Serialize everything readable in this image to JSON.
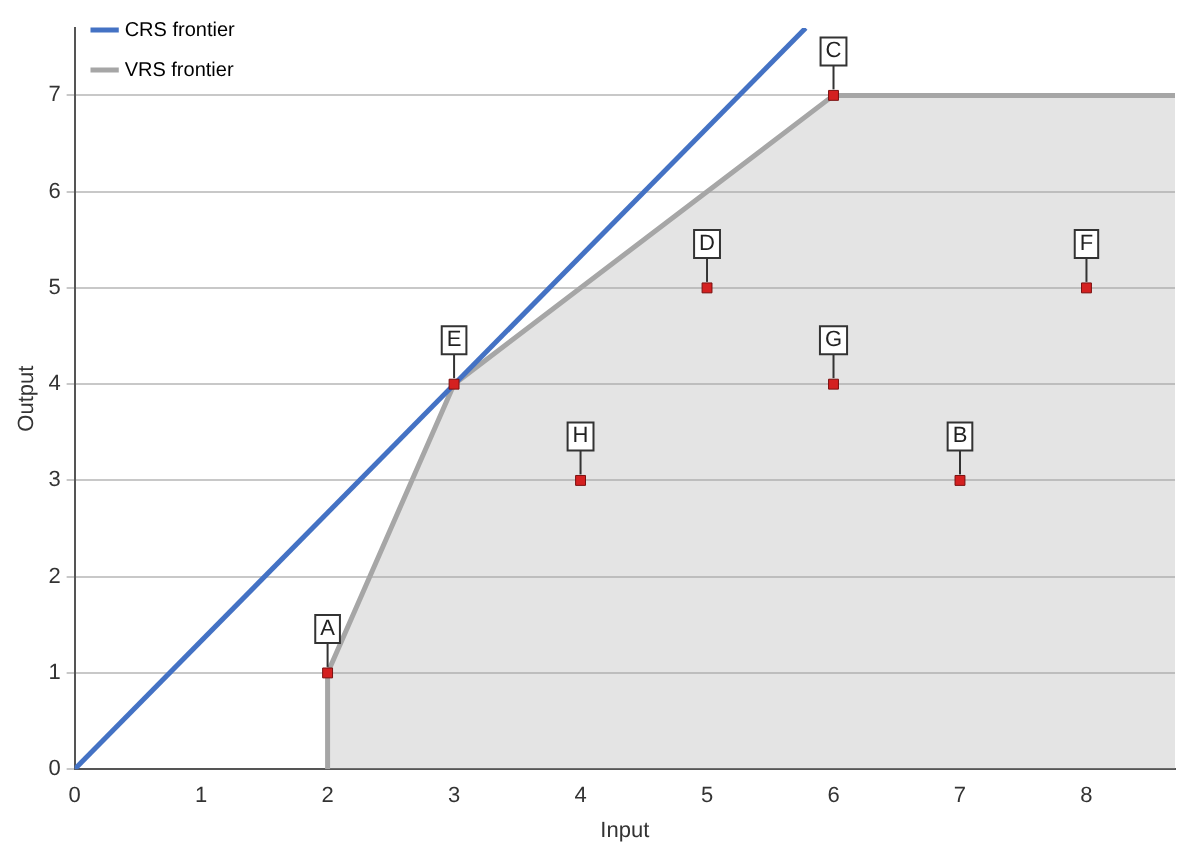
{
  "chart_data": {
    "type": "scatter",
    "xlabel": "Input",
    "ylabel": "Output",
    "xlim": [
      0,
      8.7
    ],
    "ylim": [
      0,
      7.7
    ],
    "xticks": [
      0,
      1,
      2,
      3,
      4,
      5,
      6,
      7,
      8
    ],
    "yticks": [
      0,
      1,
      2,
      3,
      4,
      5,
      6,
      7
    ],
    "grid": "y",
    "legend": "top left",
    "series": [
      {
        "marker": "square",
        "color": "#d42020",
        "x": [
          2,
          3,
          4,
          5,
          6,
          6,
          7,
          8
        ],
        "values": [
          1,
          4,
          3,
          5,
          7,
          4,
          3,
          5
        ]
      },
      {
        "type": "line",
        "name": "CRS frontier",
        "color": "#4472c4",
        "x": [
          0,
          5.78
        ],
        "values": [
          0,
          7.7
        ]
      },
      {
        "type": "area",
        "name": "VRS frontier",
        "color": "#a6a6a6",
        "x": [
          2,
          2,
          3,
          6,
          8.7
        ],
        "values": [
          0,
          1,
          4,
          7,
          7
        ]
      }
    ],
    "annotations": [
      {
        "text": "A",
        "x": 2,
        "y": 1
      },
      {
        "text": "E",
        "x": 3,
        "y": 4
      },
      {
        "text": "H",
        "x": 4,
        "y": 3
      },
      {
        "text": "D",
        "x": 5,
        "y": 5
      },
      {
        "text": "C",
        "x": 6,
        "y": 7
      },
      {
        "text": "G",
        "x": 6,
        "y": 4
      },
      {
        "text": "B",
        "x": 7,
        "y": 3
      },
      {
        "text": "F",
        "x": 8,
        "y": 5
      }
    ]
  }
}
